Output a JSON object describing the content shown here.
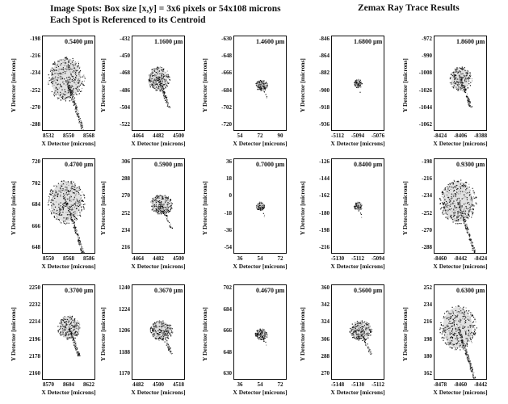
{
  "header": {
    "title_line1": "Image Spots: Box size [x,y] = 3x6 pixels or 54x108 microns",
    "title_line2": "Each Spot is Referenced to its Centroid",
    "right_title": "Zemax Ray Trace Results"
  },
  "axis_labels": {
    "x": "X Detector [microns]",
    "y": "Y Detector [microns]"
  },
  "panels": [
    {
      "wavelength": "0.5400 µm",
      "yticks": [
        "-198",
        "-216",
        "-234",
        "-252",
        "-270",
        "-288"
      ],
      "xticks": [
        "8532",
        "8550",
        "8568"
      ],
      "shape": "large"
    },
    {
      "wavelength": "1.1600 µm",
      "yticks": [
        "-432",
        "-450",
        "-468",
        "-486",
        "-504",
        "-522"
      ],
      "xticks": [
        "4464",
        "4482",
        "4500"
      ],
      "shape": "wedge"
    },
    {
      "wavelength": "1.4600 µm",
      "yticks": [
        "-630",
        "-648",
        "-666",
        "-684",
        "-702",
        "-720"
      ],
      "xticks": [
        "54",
        "72",
        "90"
      ],
      "shape": "small"
    },
    {
      "wavelength": "1.6800 µm",
      "yticks": [
        "-846",
        "-864",
        "-882",
        "-900",
        "-918",
        "-936"
      ],
      "xticks": [
        "-5112",
        "-5094",
        "-5076"
      ],
      "shape": "tiny"
    },
    {
      "wavelength": "1.8600 µm",
      "yticks": [
        "-972",
        "-990",
        "-1008",
        "-1026",
        "-1044",
        "-1062"
      ],
      "xticks": [
        "-8424",
        "-8406",
        "-8388"
      ],
      "shape": "wedge"
    },
    {
      "wavelength": "0.4700 µm",
      "yticks": [
        "720",
        "702",
        "684",
        "666",
        "648"
      ],
      "xticks": [
        "8550",
        "8568",
        "8586"
      ],
      "shape": "large"
    },
    {
      "wavelength": "0.5900 µm",
      "yticks": [
        "306",
        "288",
        "270",
        "252",
        "234",
        "216"
      ],
      "xticks": [
        "4464",
        "4482",
        "4500"
      ],
      "shape": "medium"
    },
    {
      "wavelength": "0.7000 µm",
      "yticks": [
        "36",
        "18",
        "0",
        "-18",
        "-36",
        "-54"
      ],
      "xticks": [
        "36",
        "54",
        "72"
      ],
      "shape": "tiny"
    },
    {
      "wavelength": "0.8400 µm",
      "yticks": [
        "-126",
        "-144",
        "-162",
        "-180",
        "-198",
        "-216"
      ],
      "xticks": [
        "-5130",
        "-5112",
        "-5094"
      ],
      "shape": "tiny"
    },
    {
      "wavelength": "0.9300 µm",
      "yticks": [
        "-198",
        "-216",
        "-234",
        "-252",
        "-270",
        "-288"
      ],
      "xticks": [
        "-8460",
        "-8442",
        "-8424"
      ],
      "shape": "large"
    },
    {
      "wavelength": "0.3700 µm",
      "yticks": [
        "2250",
        "2232",
        "2214",
        "2196",
        "2178",
        "2160"
      ],
      "xticks": [
        "8570",
        "8604",
        "8622"
      ],
      "shape": "wedge"
    },
    {
      "wavelength": "0.3670 µm",
      "yticks": [
        "1240",
        "1224",
        "1206",
        "1188",
        "1170"
      ],
      "xticks": [
        "4482",
        "4500",
        "4518"
      ],
      "shape": "medium"
    },
    {
      "wavelength": "0.4670 µm",
      "yticks": [
        "702",
        "684",
        "666",
        "648",
        "630"
      ],
      "xticks": [
        "36",
        "54",
        "72"
      ],
      "shape": "small"
    },
    {
      "wavelength": "0.5600 µm",
      "yticks": [
        "360",
        "342",
        "324",
        "306",
        "288",
        "270"
      ],
      "xticks": [
        "-5148",
        "-5130",
        "-5112"
      ],
      "shape": "medium"
    },
    {
      "wavelength": "0.6300 µm",
      "yticks": [
        "252",
        "234",
        "216",
        "198",
        "180",
        "162"
      ],
      "xticks": [
        "-8478",
        "-8460",
        "-8442"
      ],
      "shape": "large"
    }
  ]
}
